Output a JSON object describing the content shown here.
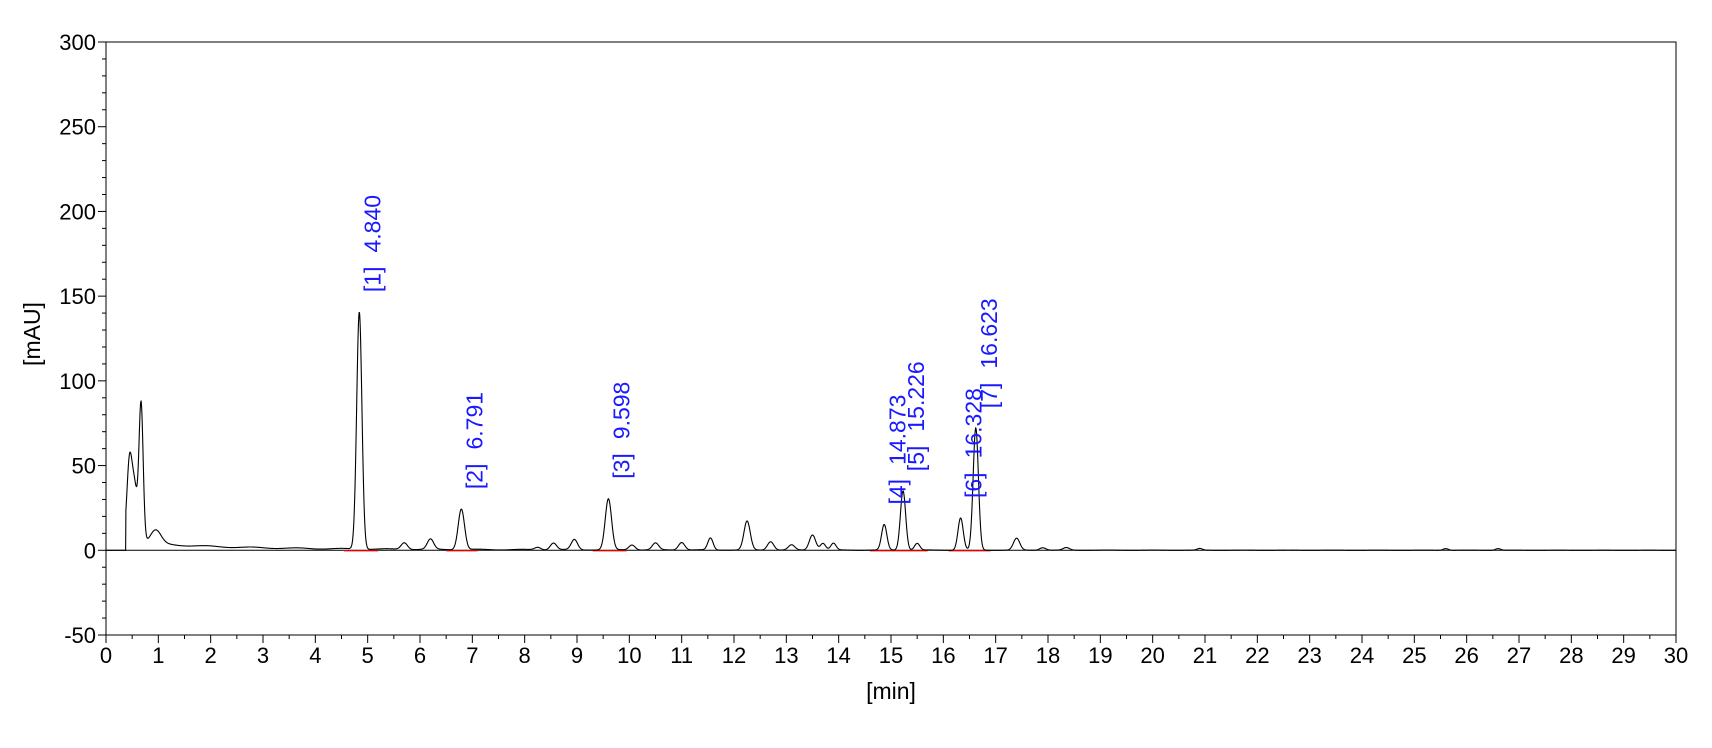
{
  "chart_data": {
    "type": "line",
    "title": "",
    "xlabel": "[min]",
    "ylabel": "[mAU]",
    "xlim": [
      0,
      30
    ],
    "ylim": [
      -50,
      300
    ],
    "x_ticks": [
      "0",
      "1",
      "2",
      "3",
      "4",
      "5",
      "6",
      "7",
      "8",
      "9",
      "10",
      "11",
      "12",
      "13",
      "14",
      "15",
      "16",
      "17",
      "18",
      "19",
      "20",
      "21",
      "22",
      "23",
      "24",
      "25",
      "26",
      "27",
      "28",
      "29",
      "30"
    ],
    "y_ticks": [
      "-50",
      "0",
      "50",
      "100",
      "150",
      "200",
      "250",
      "300"
    ],
    "grid": false,
    "legend": "none",
    "colors": {
      "trace": "#000000",
      "peak_label": "#1a1aff",
      "baseline": "#ff0000"
    },
    "series": [
      {
        "peaks": [
          {
            "t": 0.45,
            "h": 48,
            "w": 0.05
          },
          {
            "t": 0.55,
            "h": 30,
            "w": 0.05
          },
          {
            "t": 0.67,
            "h": 82,
            "w": 0.04
          },
          {
            "t": 0.95,
            "h": 8,
            "w": 0.1
          },
          {
            "t": 4.84,
            "h": 140,
            "w": 0.05
          },
          {
            "t": 5.7,
            "h": 4,
            "w": 0.06
          },
          {
            "t": 6.2,
            "h": 6,
            "w": 0.06
          },
          {
            "t": 6.79,
            "h": 24,
            "w": 0.06
          },
          {
            "t": 8.25,
            "h": 1.5,
            "w": 0.06
          },
          {
            "t": 8.55,
            "h": 4,
            "w": 0.06
          },
          {
            "t": 8.95,
            "h": 6,
            "w": 0.06
          },
          {
            "t": 9.6,
            "h": 30,
            "w": 0.06
          },
          {
            "t": 10.05,
            "h": 3,
            "w": 0.06
          },
          {
            "t": 10.5,
            "h": 4,
            "w": 0.06
          },
          {
            "t": 11.0,
            "h": 4.5,
            "w": 0.06
          },
          {
            "t": 11.55,
            "h": 7,
            "w": 0.05
          },
          {
            "t": 12.25,
            "h": 17,
            "w": 0.06
          },
          {
            "t": 12.7,
            "h": 5,
            "w": 0.06
          },
          {
            "t": 13.1,
            "h": 3,
            "w": 0.06
          },
          {
            "t": 13.5,
            "h": 9,
            "w": 0.06
          },
          {
            "t": 13.7,
            "h": 4,
            "w": 0.05
          },
          {
            "t": 13.9,
            "h": 4,
            "w": 0.05
          },
          {
            "t": 14.87,
            "h": 15,
            "w": 0.05
          },
          {
            "t": 15.23,
            "h": 35,
            "w": 0.05
          },
          {
            "t": 15.5,
            "h": 4,
            "w": 0.05
          },
          {
            "t": 16.33,
            "h": 19,
            "w": 0.05
          },
          {
            "t": 16.62,
            "h": 72,
            "w": 0.05
          },
          {
            "t": 17.4,
            "h": 7,
            "w": 0.06
          },
          {
            "t": 17.9,
            "h": 1.5,
            "w": 0.06
          },
          {
            "t": 18.35,
            "h": 1.5,
            "w": 0.06
          },
          {
            "t": 20.9,
            "h": 1,
            "w": 0.05
          },
          {
            "t": 25.6,
            "h": 1,
            "w": 0.05
          },
          {
            "t": 26.6,
            "h": 1,
            "w": 0.05
          }
        ]
      }
    ],
    "peak_labels": [
      {
        "number": "[1]",
        "time": "4.840",
        "x": 4.84
      },
      {
        "number": "[2]",
        "time": "6.791",
        "x": 6.791
      },
      {
        "number": "[3]",
        "time": "9.598",
        "x": 9.598
      },
      {
        "number": "[4]",
        "time": "14.873",
        "x": 14.873
      },
      {
        "number": "[5]",
        "time": "15.226",
        "x": 15.226
      },
      {
        "number": "[6]",
        "time": "16.328",
        "x": 16.328
      },
      {
        "number": "[7]",
        "time": "16.623",
        "x": 16.623
      }
    ],
    "integration_baselines": [
      [
        4.55,
        5.2
      ],
      [
        6.5,
        7.1
      ],
      [
        9.3,
        9.95
      ],
      [
        14.6,
        15.1
      ],
      [
        15.1,
        15.7
      ],
      [
        16.1,
        16.5
      ],
      [
        16.5,
        16.9
      ]
    ]
  }
}
